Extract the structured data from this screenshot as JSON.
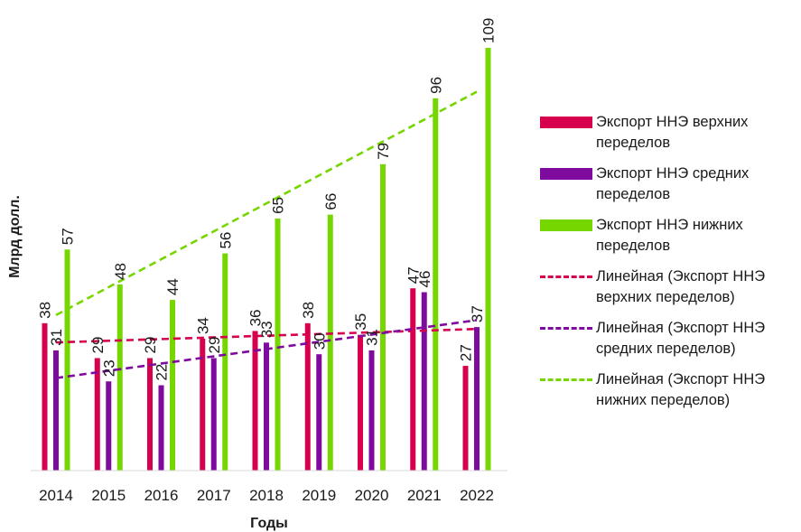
{
  "chart_data": {
    "type": "bar",
    "categories": [
      "2014",
      "2015",
      "2016",
      "2017",
      "2018",
      "2019",
      "2020",
      "2021",
      "2022"
    ],
    "series": [
      {
        "name": "Экспорт ННЭ верхних переделов",
        "color": "#d6004e",
        "values": [
          38,
          29,
          29,
          34,
          36,
          38,
          35,
          47,
          27
        ]
      },
      {
        "name": "Экспорт ННЭ средних переделов",
        "color": "#7e0a9e",
        "values": [
          31,
          23,
          22,
          29,
          33,
          30,
          31,
          46,
          37
        ]
      },
      {
        "name": "Экспорт ННЭ нижних переделов",
        "color": "#76d600",
        "values": [
          57,
          48,
          44,
          56,
          65,
          66,
          79,
          96,
          109
        ]
      }
    ],
    "trendlines": [
      {
        "name": "Линейная (Экспорт ННЭ верхних переделов)",
        "series": 0,
        "color": "#d6004e",
        "style": "dashed"
      },
      {
        "name": "Линейная (Экспорт ННЭ средних переделов)",
        "series": 1,
        "color": "#7e0a9e",
        "style": "dashed"
      },
      {
        "name": "Линейная (Экспорт ННЭ нижних переделов)",
        "series": 2,
        "color": "#76d600",
        "style": "dashed"
      }
    ],
    "xlabel": "Годы",
    "ylabel": "Млрд долл.",
    "ylim": [
      0,
      109
    ],
    "grid": false,
    "legend_position": "right"
  }
}
